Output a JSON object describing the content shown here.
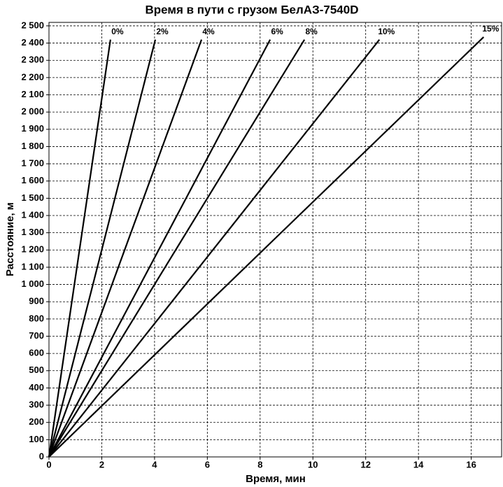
{
  "chart_data": {
    "type": "line",
    "title": "Время в пути с грузом БелАЗ-7540D",
    "x_label": "Время, мин",
    "y_label": "Расстояние, м",
    "xlim": [
      0,
      17.15
    ],
    "ylim": [
      0,
      2520
    ],
    "xticks": [
      0,
      2,
      4,
      6,
      8,
      10,
      12,
      14,
      16
    ],
    "yticks": [
      0,
      100,
      200,
      300,
      400,
      500,
      600,
      700,
      800,
      900,
      {
        "value": 1000,
        "label": "1 000"
      },
      {
        "value": 1100,
        "label": "1 100"
      },
      {
        "value": 1200,
        "label": "1 200"
      },
      {
        "value": 1300,
        "label": "1 300"
      },
      {
        "value": 1400,
        "label": "1 400"
      },
      {
        "value": 1500,
        "label": "1 500"
      },
      {
        "value": 1600,
        "label": "1 600"
      },
      {
        "value": 1700,
        "label": "1 700"
      },
      {
        "value": 1800,
        "label": "1 800"
      },
      {
        "value": 1900,
        "label": "1 900"
      },
      {
        "value": 2000,
        "label": "2 000"
      },
      {
        "value": 2100,
        "label": "2 100"
      },
      {
        "value": 2200,
        "label": "2 200"
      },
      {
        "value": 2300,
        "label": "2 300"
      },
      {
        "value": 2400,
        "label": "2 400"
      },
      {
        "value": 2500,
        "label": "2 500"
      }
    ],
    "grid": true,
    "series": [
      {
        "name": "0%",
        "color": "#000000",
        "x": [
          0,
          2.33
        ],
        "values": [
          0,
          2420
        ]
      },
      {
        "name": "2%",
        "color": "#000000",
        "x": [
          0,
          4.03
        ],
        "values": [
          0,
          2420
        ]
      },
      {
        "name": "4%",
        "color": "#000000",
        "x": [
          0,
          5.78
        ],
        "values": [
          0,
          2420
        ]
      },
      {
        "name": "6%",
        "color": "#000000",
        "x": [
          0,
          8.38
        ],
        "values": [
          0,
          2420
        ]
      },
      {
        "name": "8%",
        "color": "#000000",
        "x": [
          0,
          9.68
        ],
        "values": [
          0,
          2420
        ]
      },
      {
        "name": "10%",
        "color": "#000000",
        "x": [
          0,
          12.52
        ],
        "values": [
          0,
          2420
        ]
      },
      {
        "name": "15%",
        "color": "#000000",
        "x": [
          0,
          16.47
        ],
        "values": [
          0,
          2435
        ]
      }
    ]
  }
}
